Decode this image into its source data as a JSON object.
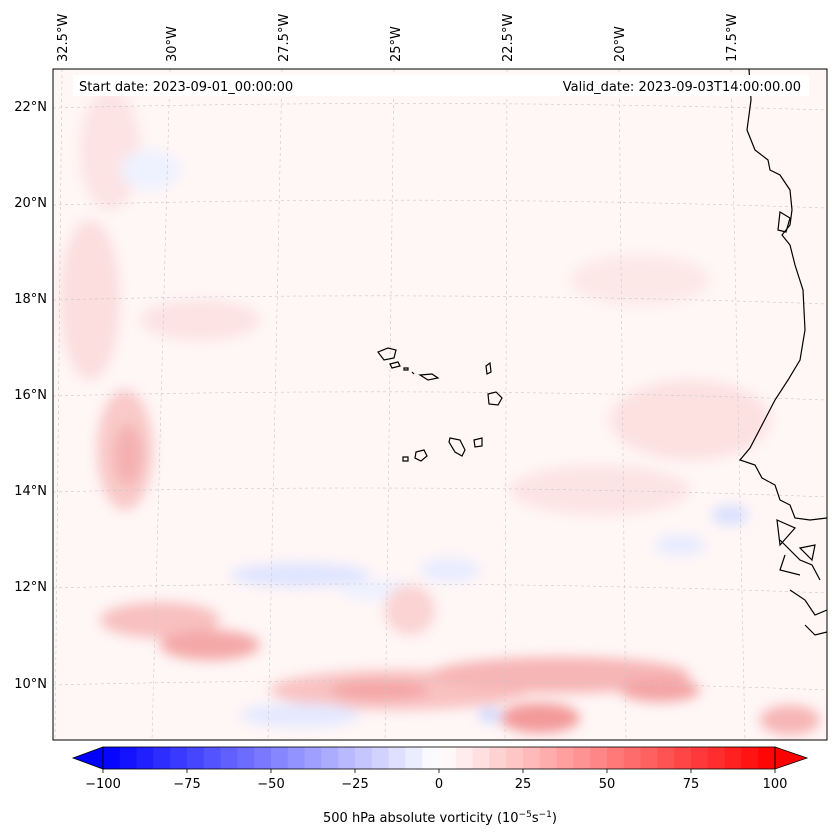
{
  "map": {
    "type": "filled-contour-map",
    "variable": "500 hPa absolute vorticity",
    "region": "Cabo Verde / West Africa coast",
    "lon_range": [
      -33,
      -16
    ],
    "lat_range": [
      9,
      23
    ]
  },
  "header": {
    "start_label": "Start date: 2023-09-01_00:00:00",
    "valid_label": "Valid_date: 2023-09-03T14:00:00.00"
  },
  "longitude_labels": [
    "32.5°W",
    "30°W",
    "27.5°W",
    "25°W",
    "22.5°W",
    "20°W",
    "17.5°W"
  ],
  "latitude_labels": [
    "22°N",
    "20°N",
    "18°N",
    "16°N",
    "14°N",
    "12°N",
    "10°N"
  ],
  "colorbar": {
    "min": -100,
    "max": 100,
    "colors": {
      "negative": "#0000ff",
      "neutral": "#ffffff",
      "positive": "#ff0000"
    },
    "tick_labels": [
      "−100",
      "−75",
      "−50",
      "−25",
      "0",
      "25",
      "50",
      "75",
      "100"
    ],
    "label_text": "500 hPa absolute vorticity (10",
    "label_exp1": "−5",
    "label_mid": "s",
    "label_exp2": "−1",
    "label_end": ")"
  }
}
